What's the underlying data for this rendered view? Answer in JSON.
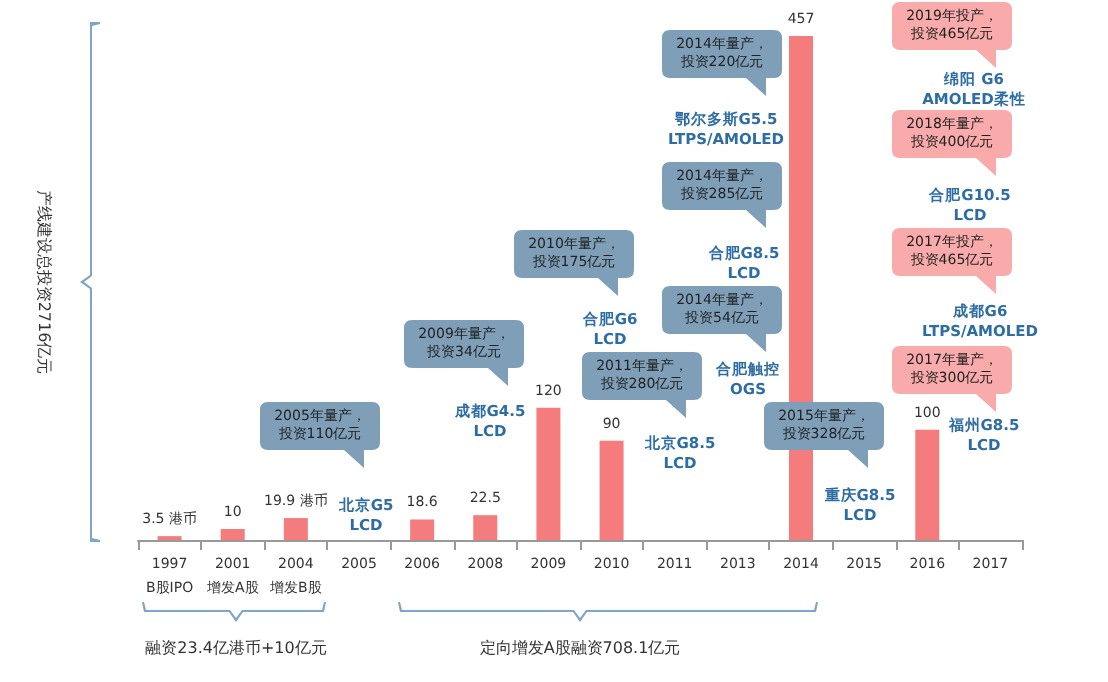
{
  "chart_data": {
    "type": "bar",
    "categories": [
      "1997\nB股IPO",
      "2001\n增发A股",
      "2004\n增发B股",
      "2005",
      "2006",
      "2008",
      "2009",
      "2010",
      "2011",
      "2013",
      "2014",
      "2015",
      "2016",
      "2017"
    ],
    "values": [
      3.5,
      10,
      19.9,
      null,
      18.6,
      22.5,
      120,
      90,
      null,
      null,
      457,
      null,
      100,
      null
    ],
    "value_labels": [
      "3.5 港币",
      "10",
      "19.9 港币",
      null,
      "18.6",
      "22.5",
      "120",
      "90",
      null,
      null,
      "457",
      null,
      "100",
      null
    ],
    "color": "#f47c7c",
    "annotations": [
      "2005年量产，投资110亿元",
      "北京G5 LCD",
      "2009年量产，投资34亿元",
      "成都G4.5 LCD",
      "2010年量产，投资175亿元",
      "合肥G6 LCD",
      "2011年量产，投资280亿元",
      "北京G8.5 LCD",
      "2014年量产，投资220亿元",
      "鄂尔多斯G5.5 LTPS/AMOLED",
      "2014年量产，投资285亿元",
      "合肥G8.5 LCD",
      "2014年量产，投资54亿元",
      "合肥触控 OGS",
      "2015年量产，投资328亿元",
      "重庆G8.5 LCD",
      "2019年投产，投资465亿元",
      "绵阳 G6 AMOLED柔性",
      "2018年量产，投资400亿元",
      "合肥G10.5 LCD",
      "2017年投产，投资465亿元",
      "成都G6 LTPS/AMOLED",
      "2017年量产，投资300亿元",
      "福州G8.5 LCD",
      "融资23.4亿港币+10亿元",
      "定向增发A股融资708.1亿元",
      "产线建设总投资2716亿元"
    ]
  }
}
